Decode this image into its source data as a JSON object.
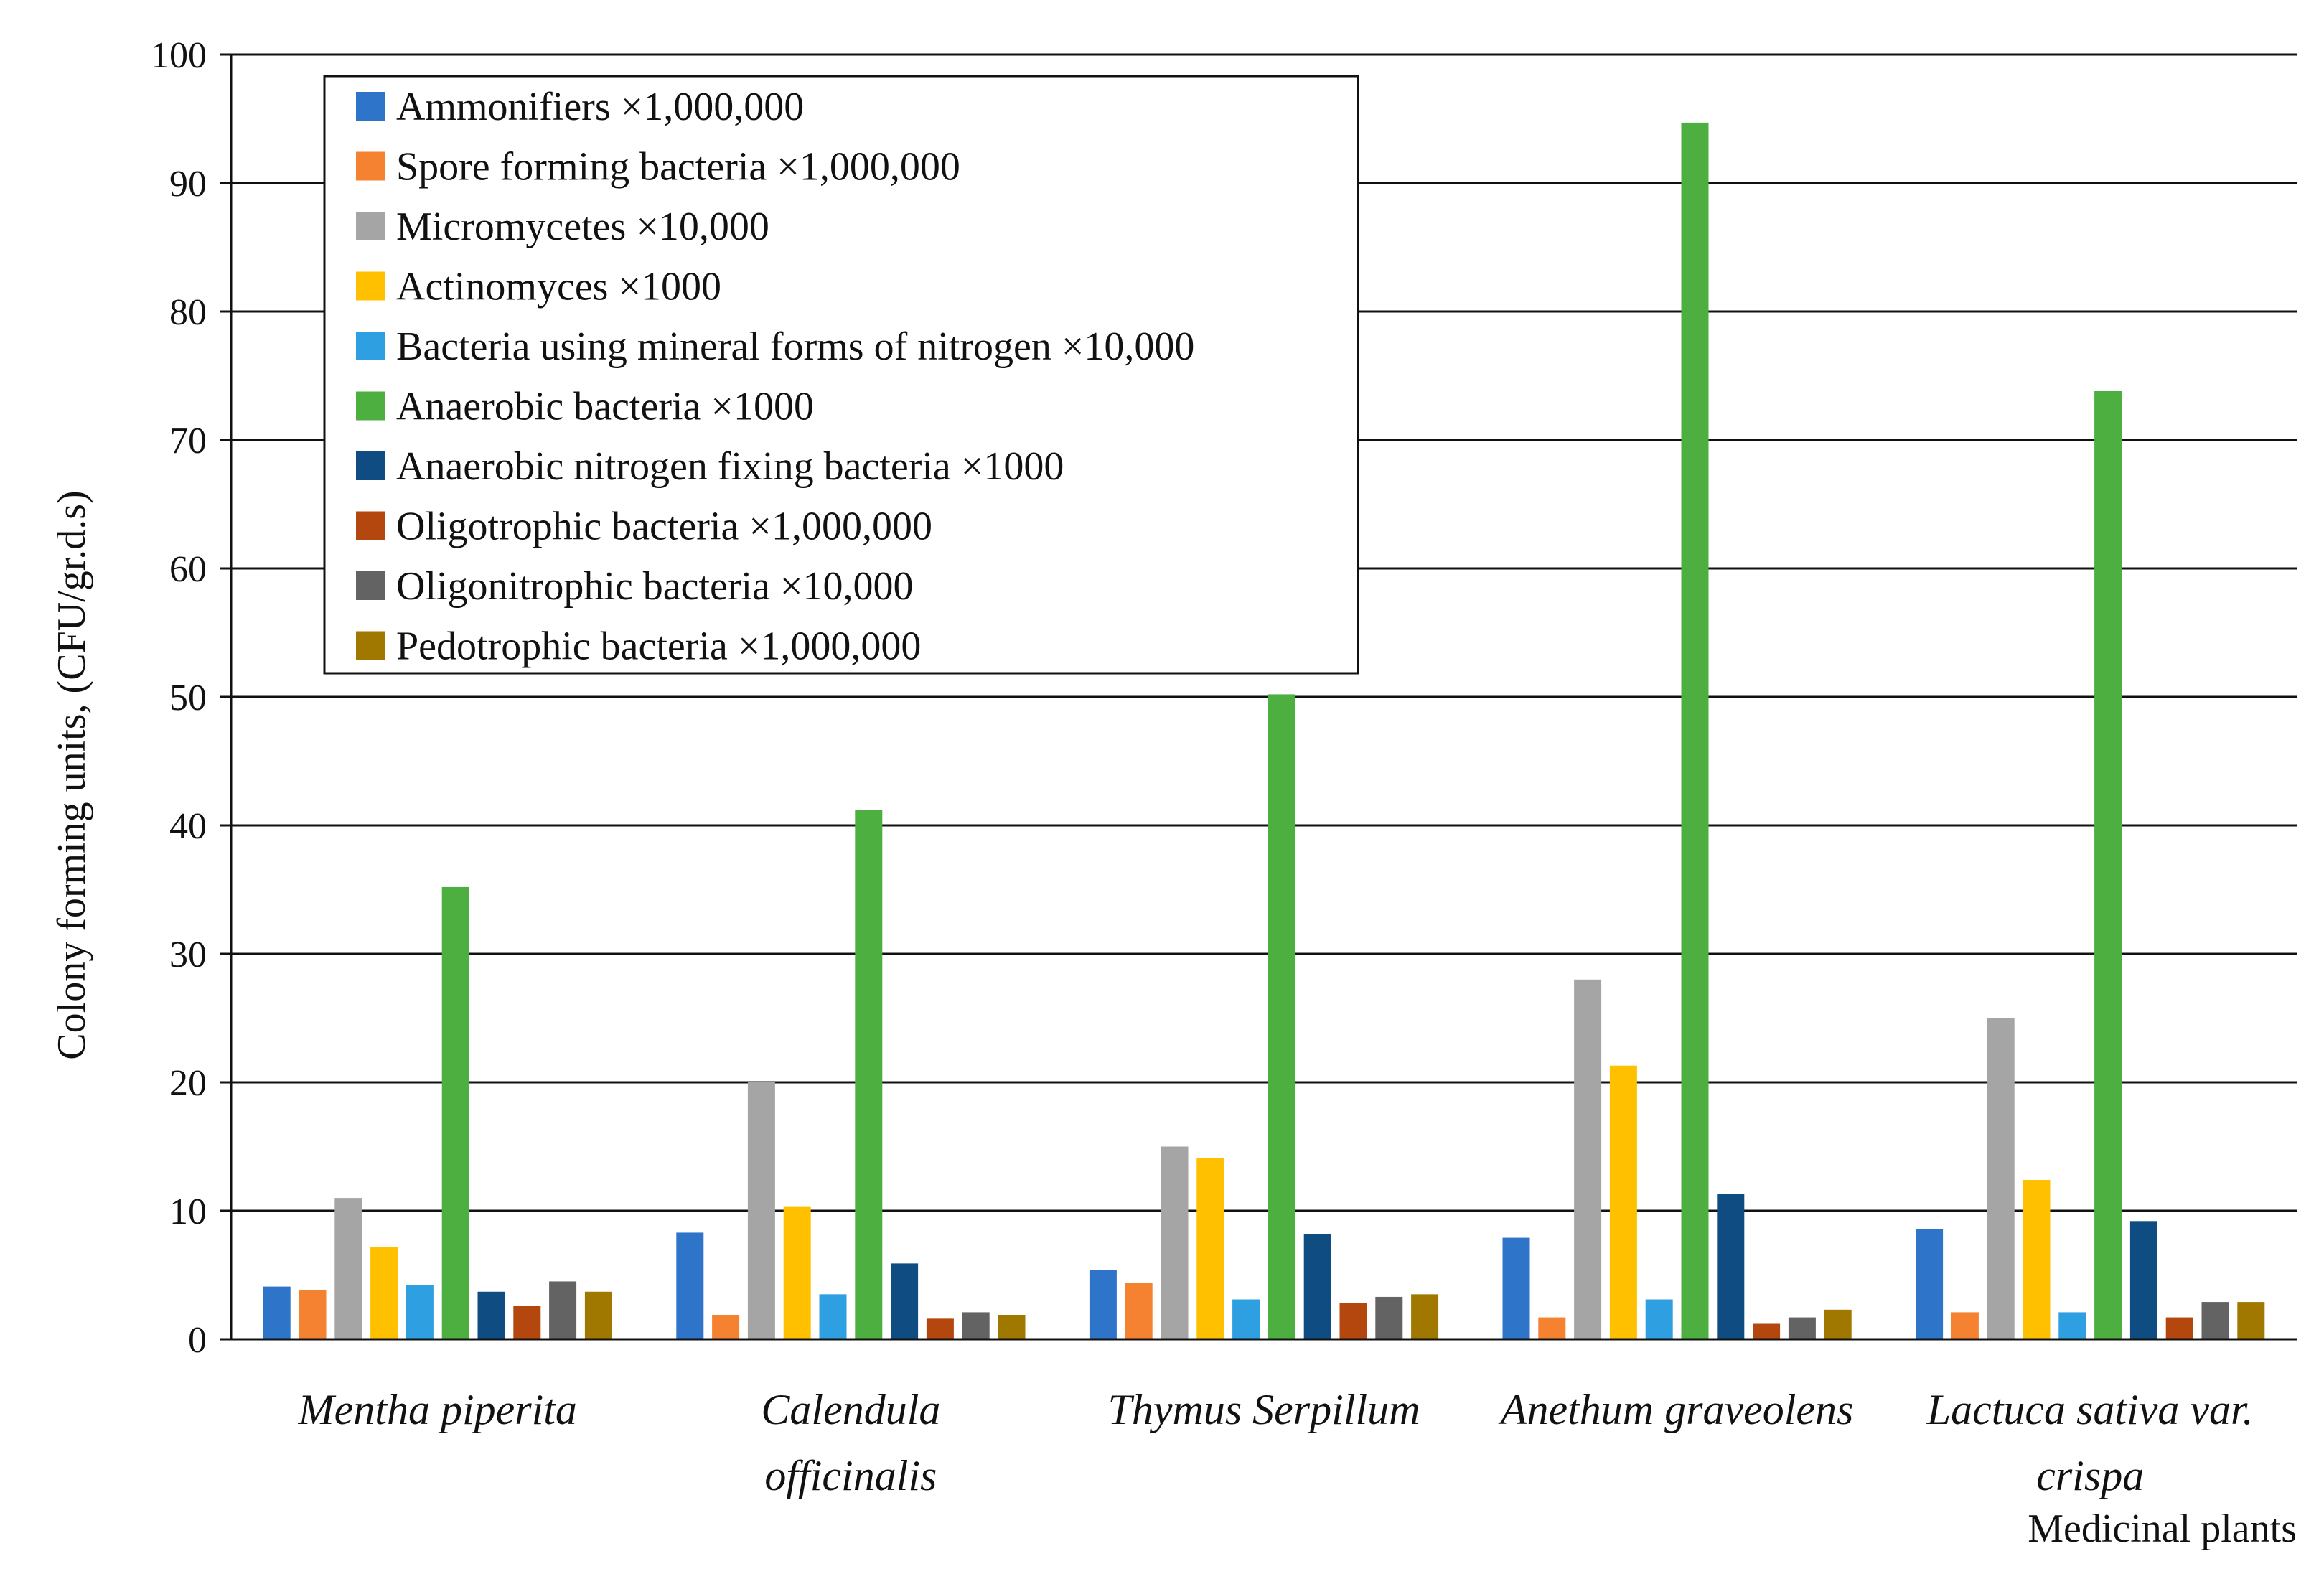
{
  "chart_data": {
    "type": "bar",
    "title": "",
    "xlabel": "Medicinal plants",
    "ylabel": "Colony forming units, (CFU/gr.d.s)",
    "ylim": [
      0,
      100
    ],
    "yticks": [
      0,
      10,
      20,
      30,
      40,
      50,
      60,
      70,
      80,
      90,
      100
    ],
    "grid": true,
    "legend_position": "top-left",
    "categories": [
      "Mentha piperita",
      "Calendula officinalis",
      "Thymus Serpillum",
      "Anethum graveolens",
      "Lactuca sativa var. crispa"
    ],
    "series": [
      {
        "name": "Ammonifiers ×1,000,000",
        "color": "#2E75C9",
        "values": [
          4.1,
          8.3,
          5.4,
          7.9,
          8.6
        ]
      },
      {
        "name": "Spore forming bacteria ×1,000,000",
        "color": "#F58231",
        "values": [
          3.8,
          1.9,
          4.4,
          1.7,
          2.1
        ]
      },
      {
        "name": "Micromycetes ×10,000",
        "color": "#A5A5A5",
        "values": [
          11.0,
          20.0,
          15.0,
          28.0,
          25.0
        ]
      },
      {
        "name": "Actinomyces ×1000",
        "color": "#FFC000",
        "values": [
          7.2,
          10.3,
          14.1,
          21.3,
          12.4
        ]
      },
      {
        "name": "Bacteria using mineral forms of nitrogen ×10,000",
        "color": "#2E9FE0",
        "values": [
          4.2,
          3.5,
          3.1,
          3.1,
          2.1
        ]
      },
      {
        "name": "Anaerobic bacteria ×1000",
        "color": "#4CAF3F",
        "values": [
          35.2,
          41.2,
          50.2,
          94.7,
          73.8
        ]
      },
      {
        "name": "Anaerobic nitrogen fixing bacteria ×1000",
        "color": "#0F4C81",
        "values": [
          3.7,
          5.9,
          8.2,
          11.3,
          9.2
        ]
      },
      {
        "name": "Oligotrophic bacteria ×1,000,000",
        "color": "#B3470E",
        "values": [
          2.6,
          1.6,
          2.8,
          1.2,
          1.7
        ]
      },
      {
        "name": "Oligonitrophic bacteria ×10,000",
        "color": "#636363",
        "values": [
          4.5,
          2.1,
          3.3,
          1.7,
          2.9
        ]
      },
      {
        "name": "Pedotrophic bacteria ×1,000,000",
        "color": "#A07800",
        "values": [
          3.7,
          1.9,
          3.5,
          2.3,
          2.9
        ]
      }
    ]
  }
}
